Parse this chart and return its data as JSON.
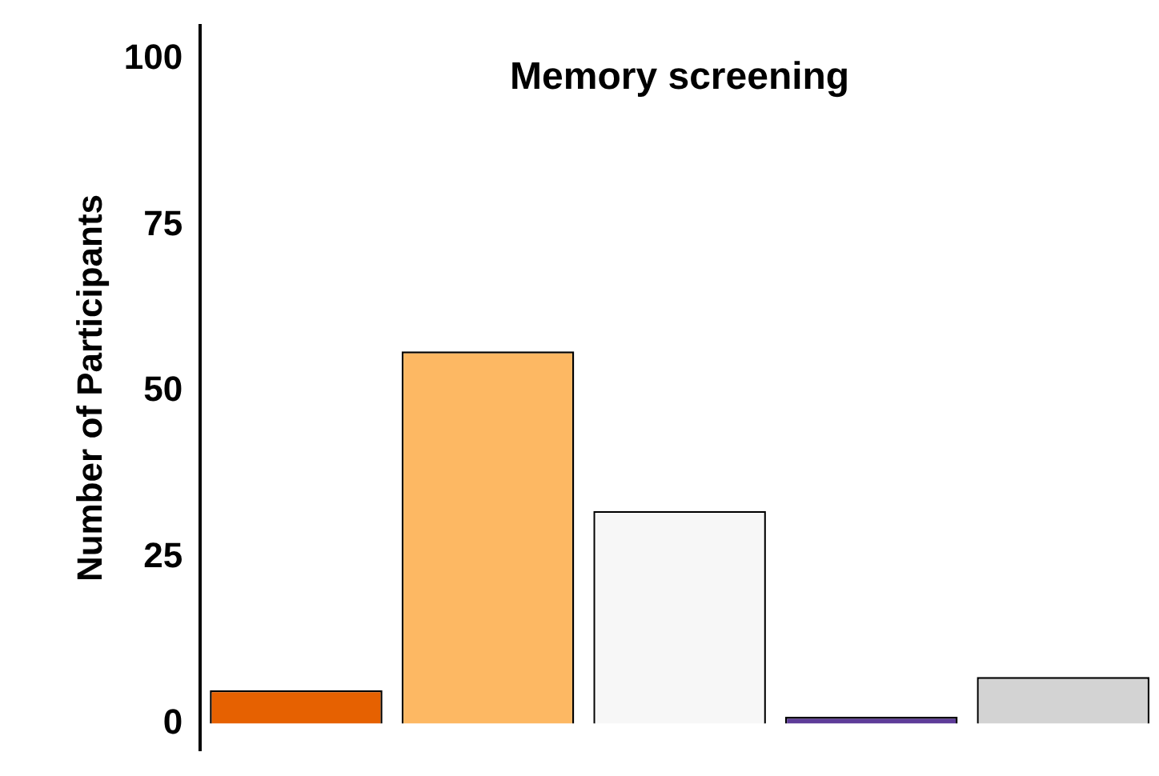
{
  "chart_data": {
    "type": "bar",
    "title": "Memory screening",
    "ylabel": "Number of Participants",
    "categories": [
      null,
      null,
      null,
      null,
      null
    ],
    "values": [
      5,
      56,
      32,
      1,
      7
    ],
    "colors": [
      "#e66101",
      "#fdb863",
      "#f7f7f7",
      "#5e3c99",
      "#d3d3d3"
    ],
    "ylim": [
      -4,
      105
    ],
    "yticks": [
      0,
      25,
      50,
      75,
      100
    ],
    "grid": false,
    "legend": false
  }
}
